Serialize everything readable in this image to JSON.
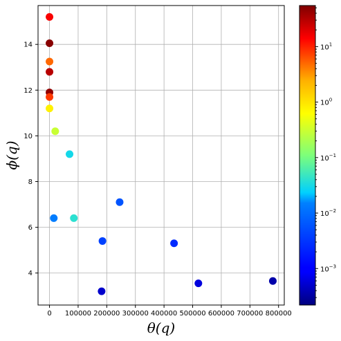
{
  "chart_data": {
    "type": "scatter",
    "xlabel": "θ(q)",
    "ylabel": "ϕ(q)",
    "xlim": [
      -40000,
      820000
    ],
    "ylim": [
      2.6,
      15.7
    ],
    "x_ticks": [
      0,
      100000,
      200000,
      300000,
      400000,
      500000,
      600000,
      700000,
      800000
    ],
    "y_ticks": [
      4,
      6,
      8,
      10,
      12,
      14
    ],
    "grid": true,
    "colorbar": {
      "colormap": "jet",
      "scale": "log",
      "range": [
        0.00022,
        55
      ],
      "tick_labels": [
        {
          "base": "10",
          "exp": "1",
          "value": 10
        },
        {
          "base": "10",
          "exp": "0",
          "value": 1
        },
        {
          "base": "10",
          "exp": "−1",
          "value": 0.1
        },
        {
          "base": "10",
          "exp": "−2",
          "value": 0.01
        },
        {
          "base": "10",
          "exp": "−3",
          "value": 0.001
        }
      ]
    },
    "points": [
      {
        "x": 0,
        "y": 15.2,
        "c": 15
      },
      {
        "x": 0,
        "y": 14.05,
        "c": 50
      },
      {
        "x": 0,
        "y": 13.25,
        "c": 5
      },
      {
        "x": 0,
        "y": 12.8,
        "c": 30
      },
      {
        "x": 0,
        "y": 11.9,
        "c": 45
      },
      {
        "x": 0,
        "y": 11.7,
        "c": 8
      },
      {
        "x": 0,
        "y": 11.2,
        "c": 0.8
      },
      {
        "x": 20000,
        "y": 10.2,
        "c": 0.3
      },
      {
        "x": 70000,
        "y": 9.2,
        "c": 0.03
      },
      {
        "x": 15000,
        "y": 6.4,
        "c": 0.014
      },
      {
        "x": 85000,
        "y": 6.4,
        "c": 0.04
      },
      {
        "x": 245000,
        "y": 7.1,
        "c": 0.006
      },
      {
        "x": 185000,
        "y": 5.4,
        "c": 0.004
      },
      {
        "x": 435000,
        "y": 5.3,
        "c": 0.0025
      },
      {
        "x": 182000,
        "y": 3.2,
        "c": 0.0005
      },
      {
        "x": 520000,
        "y": 3.55,
        "c": 0.0006
      },
      {
        "x": 780000,
        "y": 3.65,
        "c": 0.00035
      }
    ]
  }
}
